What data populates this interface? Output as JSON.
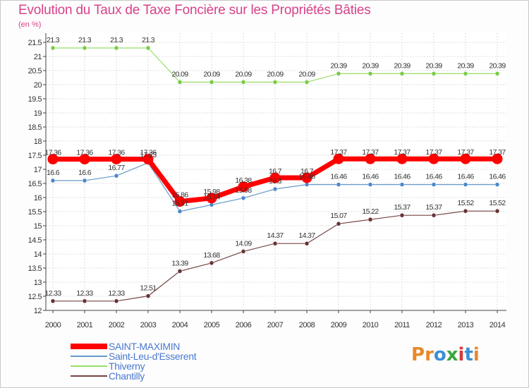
{
  "header": {
    "title": "Evolution du Taux de Taxe Foncière sur les Propriétés Bâties",
    "unit": "(en %)"
  },
  "logo": {
    "text": "Proxiti",
    "letters": [
      "P",
      "r",
      "o",
      "x",
      "i",
      "t",
      "i"
    ],
    "colors": [
      "#e8892a",
      "#e8892a",
      "#3b8fd6",
      "#3aa63a",
      "#d63a3a",
      "#3b8fd6",
      "#e8892a"
    ]
  },
  "chart_data": {
    "type": "line",
    "title": "Evolution du Taux de Taxe Foncière sur les Propriétés Bâties",
    "ylabel": "(en %)",
    "xlabel": "",
    "ylim": [
      12,
      21.5
    ],
    "yticks": [
      "12",
      "12.5",
      "13",
      "13.5",
      "14",
      "14.5",
      "15",
      "15.5",
      "16",
      "16.5",
      "17",
      "17.5",
      "18",
      "18.5",
      "19",
      "19.5",
      "20",
      "20.5",
      "21",
      "21.5"
    ],
    "categories": [
      "2000",
      "2001",
      "2002",
      "2003",
      "2004",
      "2005",
      "2006",
      "2007",
      "2008",
      "2009",
      "2010",
      "2011",
      "2012",
      "2013",
      "2014"
    ],
    "series": [
      {
        "name": "SAINT-MAXIMIN",
        "color": "#ff0000",
        "values": [
          17.36,
          17.36,
          17.36,
          17.36,
          15.86,
          15.98,
          16.38,
          16.7,
          16.7,
          17.37,
          17.37,
          17.37,
          17.37,
          17.37,
          17.37
        ],
        "labels": [
          "17.36",
          "17.36",
          "17.36",
          "17.36",
          "15.86",
          "15.98",
          "16.38",
          "16.7",
          "16.7",
          "17.37",
          "17.37",
          "17.37",
          "17.37",
          "17.37",
          "17.37"
        ]
      },
      {
        "name": "Saint-Leu-d'Esserent",
        "color": "#6699cc",
        "values": [
          16.6,
          16.6,
          16.77,
          17.23,
          15.51,
          15.74,
          15.98,
          16.3,
          16.46,
          16.46,
          16.46,
          16.46,
          16.46,
          16.46,
          16.46
        ],
        "labels": [
          "16.6",
          "16.6",
          "16.77",
          "17.23",
          "15.51",
          "15.74",
          "15.98",
          "16.3",
          "16.46",
          "16.46",
          "16.46",
          "16.46",
          "16.46",
          "16.46",
          "16.46"
        ]
      },
      {
        "name": "Thiverny",
        "color": "#99dd66",
        "values": [
          21.3,
          21.3,
          21.3,
          21.3,
          20.09,
          20.09,
          20.09,
          20.09,
          20.09,
          20.39,
          20.39,
          20.39,
          20.39,
          20.39,
          20.39
        ],
        "labels": [
          "21.3",
          "21.3",
          "21.3",
          "21.3",
          "20.09",
          "20.09",
          "20.09",
          "20.09",
          "20.09",
          "20.39",
          "20.39",
          "20.39",
          "20.39",
          "20.39",
          "20.39"
        ]
      },
      {
        "name": "Chantilly",
        "color": "#774444",
        "values": [
          12.33,
          12.33,
          12.33,
          12.51,
          13.39,
          13.68,
          14.09,
          14.37,
          14.37,
          15.07,
          15.22,
          15.37,
          15.37,
          15.52,
          15.52
        ],
        "labels": [
          "12.33",
          "12.33",
          "12.33",
          "12.51",
          "13.39",
          "13.68",
          "14.09",
          "14.37",
          "14.37",
          "15.07",
          "15.22",
          "15.37",
          "15.37",
          "15.52",
          "15.52"
        ]
      }
    ],
    "legend": [
      "SAINT-MAXIMIN",
      "Saint-Leu-d'Esserent",
      "Thiverny",
      "Chantilly"
    ],
    "legend_position": "bottom-left",
    "grid": true
  }
}
